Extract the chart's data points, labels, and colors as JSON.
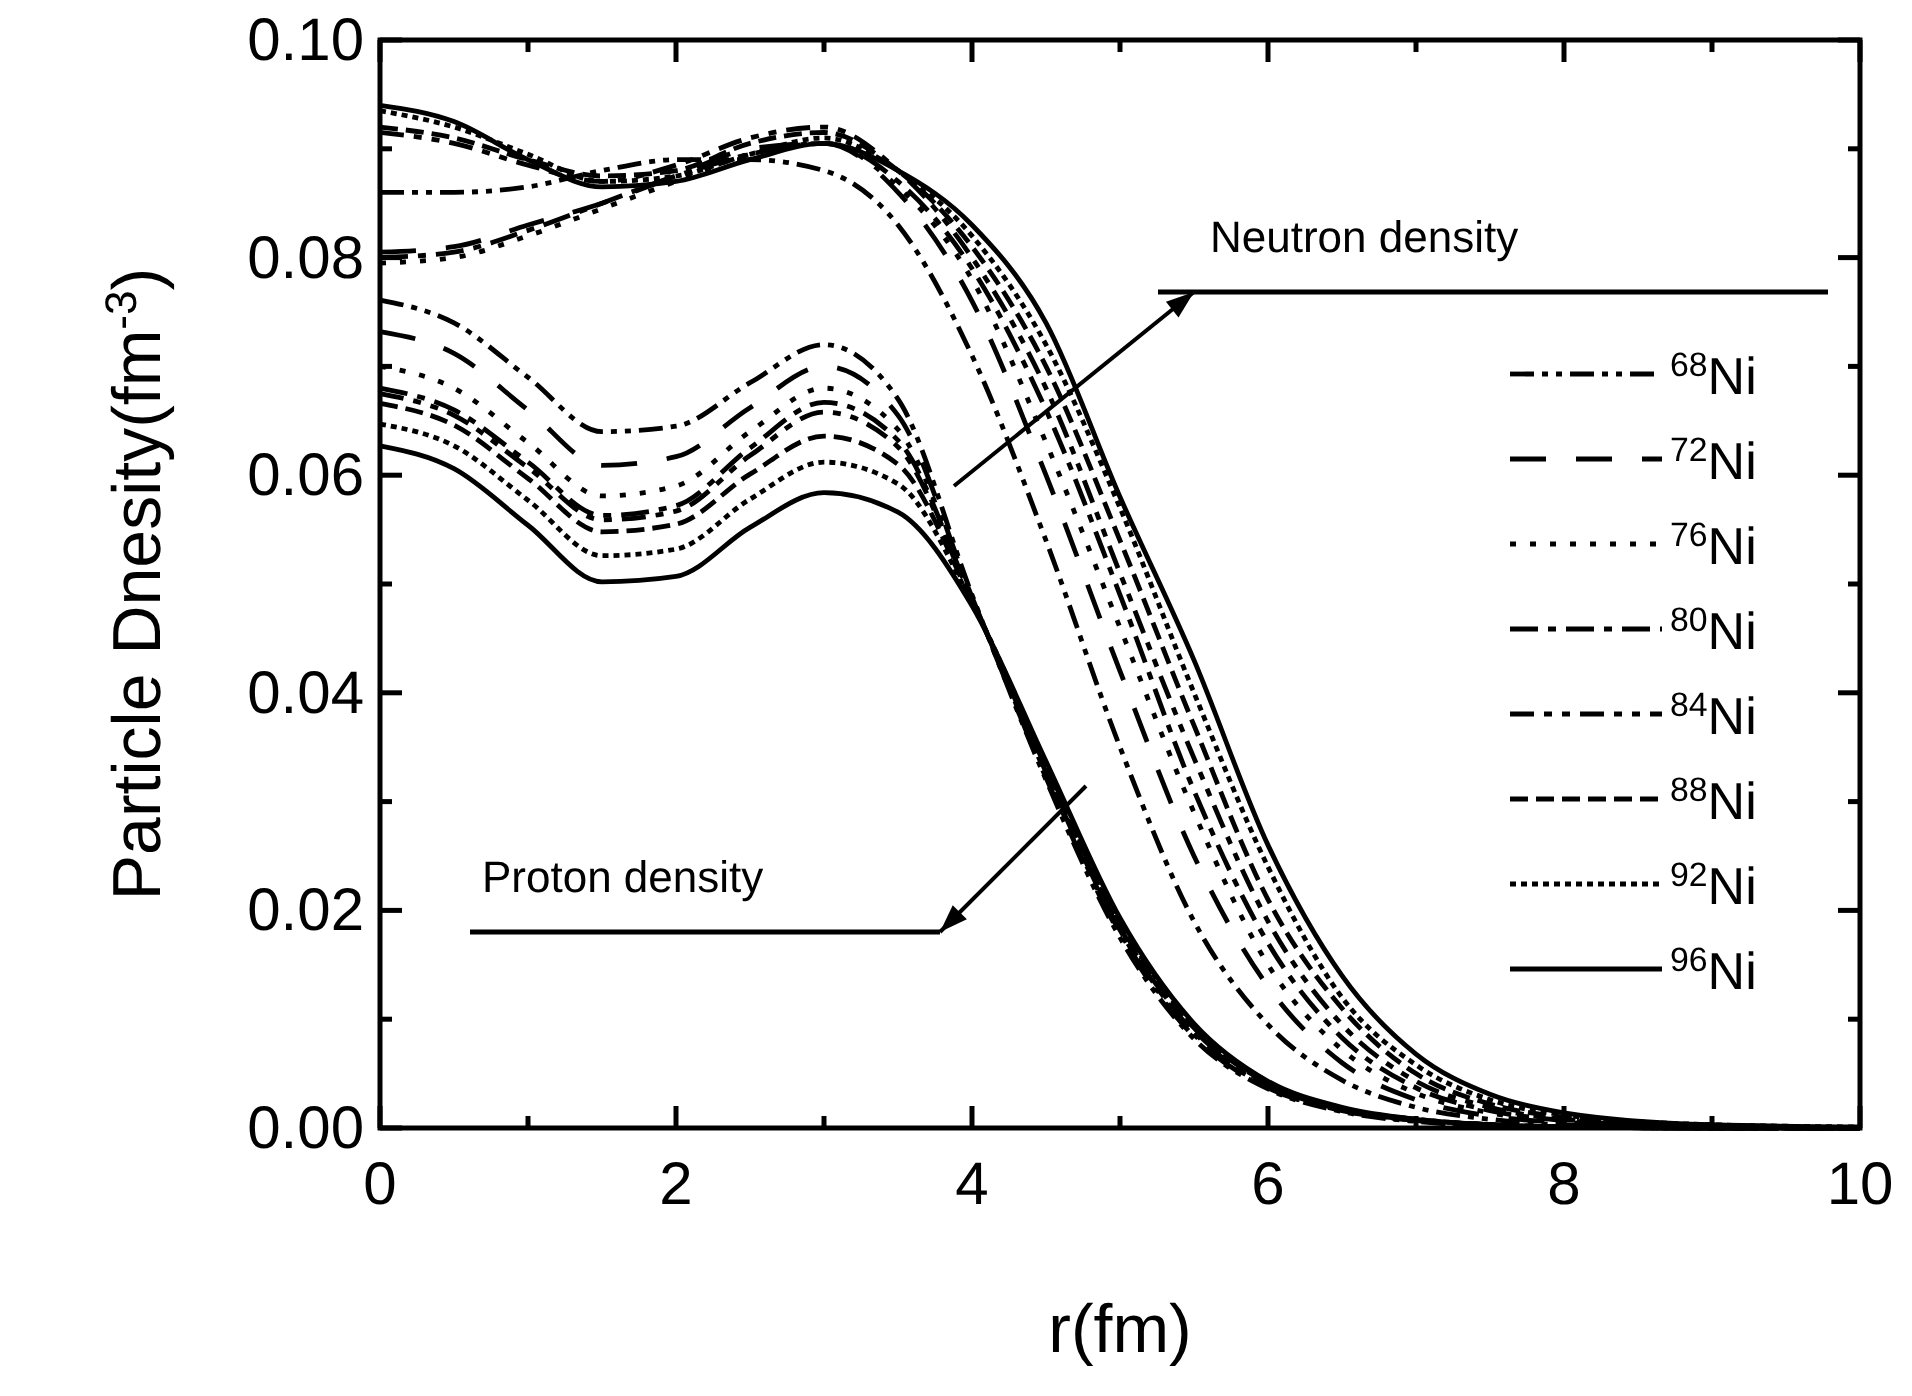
{
  "chart_data": {
    "type": "line",
    "xlabel": "r(fm)",
    "ylabel": "Particle Dnesity(fm$^{-3}$)",
    "x": [
      0,
      0.5,
      1,
      1.5,
      2,
      2.5,
      3,
      3.5,
      4,
      4.5,
      5,
      5.5,
      6,
      6.5,
      7,
      7.5,
      8,
      9,
      10
    ],
    "xlim": [
      0,
      10
    ],
    "ylim": [
      0,
      0.1
    ],
    "xticks": [
      0,
      {
        "value": 1,
        "label": null
      },
      2,
      {
        "value": 3,
        "label": null
      },
      4,
      {
        "value": 5,
        "label": null
      },
      6,
      {
        "value": 7,
        "label": null
      },
      8,
      {
        "value": 9,
        "label": null
      },
      10
    ],
    "yticks": [
      {
        "value": 0,
        "label": "0.00"
      },
      {
        "value": 0.01,
        "label": null
      },
      {
        "value": 0.02,
        "label": "0.02"
      },
      {
        "value": 0.03,
        "label": null
      },
      {
        "value": 0.04,
        "label": "0.04"
      },
      {
        "value": 0.05,
        "label": null
      },
      {
        "value": 0.06,
        "label": "0.06"
      },
      {
        "value": 0.07,
        "label": null
      },
      {
        "value": 0.08,
        "label": "0.08"
      },
      {
        "value": 0.09,
        "label": null
      },
      {
        "value": 0.1,
        "label": "0.10"
      }
    ],
    "grid": false,
    "legend": "right",
    "marker": "none",
    "annotations": [
      "Neutron density",
      "Proton density"
    ],
    "series": [
      {
        "name": "$^{68}$Ni",
        "color": "#000000",
        "line_style": "dashdotdot",
        "values": [
          0.086,
          0.086,
          0.0865,
          0.088,
          0.089,
          0.089,
          0.088,
          0.083,
          0.071,
          0.054,
          0.035,
          0.019,
          0.0095,
          0.0044,
          0.0019,
          0.0008,
          0.0003,
          0.0001,
          0
        ]
      },
      {
        "name": "$^{72}$Ni",
        "color": "#000000",
        "line_style": "longdash",
        "values": [
          0.0805,
          0.081,
          0.083,
          0.085,
          0.0875,
          0.09,
          0.0905,
          0.086,
          0.076,
          0.06,
          0.042,
          0.025,
          0.013,
          0.006,
          0.0026,
          0.0011,
          0.0005,
          0.0001,
          0
        ]
      },
      {
        "name": "$^{76}$Ni",
        "color": "#000000",
        "line_style": "dotted",
        "values": [
          0.0795,
          0.08,
          0.082,
          0.0845,
          0.087,
          0.0895,
          0.0905,
          0.0865,
          0.078,
          0.063,
          0.046,
          0.029,
          0.015,
          0.0072,
          0.0032,
          0.0014,
          0.0006,
          0.0001,
          0
        ]
      },
      {
        "name": "$^{80}$Ni",
        "color": "#000000",
        "line_style": "dashdot",
        "values": [
          0.08,
          0.0805,
          0.0825,
          0.085,
          0.0875,
          0.0895,
          0.0905,
          0.087,
          0.079,
          0.066,
          0.049,
          0.031,
          0.017,
          0.0083,
          0.0037,
          0.0016,
          0.0007,
          0.0001,
          0
        ]
      },
      {
        "name": "$^{84}$Ni",
        "color": "#000000",
        "line_style": "dashdotdotwide",
        "values": [
          0.0915,
          0.0905,
          0.0885,
          0.087,
          0.0885,
          0.091,
          0.092,
          0.088,
          0.08,
          0.068,
          0.051,
          0.034,
          0.019,
          0.0095,
          0.0043,
          0.0019,
          0.0008,
          0.0002,
          0
        ]
      },
      {
        "name": "$^{88}$Ni",
        "color": "#000000",
        "line_style": "dashed",
        "values": [
          0.092,
          0.091,
          0.089,
          0.0875,
          0.088,
          0.0905,
          0.0915,
          0.088,
          0.081,
          0.07,
          0.054,
          0.037,
          0.021,
          0.011,
          0.005,
          0.0022,
          0.001,
          0.0002,
          0
        ]
      },
      {
        "name": "$^{92}$Ni",
        "color": "#000000",
        "line_style": "densedot",
        "values": [
          0.0935,
          0.092,
          0.0895,
          0.087,
          0.0875,
          0.0895,
          0.091,
          0.088,
          0.082,
          0.072,
          0.057,
          0.04,
          0.024,
          0.012,
          0.0058,
          0.0026,
          0.0012,
          0.0003,
          0.0001
        ]
      },
      {
        "name": "$^{96}$Ni",
        "color": "#000000",
        "line_style": "solid",
        "values": [
          0.094,
          0.0925,
          0.089,
          0.0865,
          0.087,
          0.089,
          0.0905,
          0.088,
          0.083,
          0.074,
          0.058,
          0.043,
          0.026,
          0.014,
          0.0068,
          0.0031,
          0.0014,
          0.0003,
          0.0001
        ]
      },
      {
        "color": "#000000",
        "line_style": "dashdotdot",
        "values": [
          0.0761,
          0.074,
          0.069,
          0.064,
          0.0645,
          0.0685,
          0.072,
          0.067,
          0.049,
          0.032,
          0.0175,
          0.0082,
          0.0036,
          0.0015,
          0.0006,
          0.0002,
          0.0001,
          0,
          0
        ]
      },
      {
        "color": "#000000",
        "line_style": "longdash",
        "values": [
          0.0732,
          0.0712,
          0.066,
          0.0609,
          0.0617,
          0.0662,
          0.07,
          0.0655,
          0.0488,
          0.0322,
          0.0178,
          0.0084,
          0.0037,
          0.0016,
          0.0007,
          0.0003,
          0.0001,
          0,
          0
        ]
      },
      {
        "color": "#000000",
        "line_style": "dotted",
        "values": [
          0.07,
          0.068,
          0.063,
          0.0581,
          0.059,
          0.064,
          0.068,
          0.0642,
          0.0487,
          0.0325,
          0.018,
          0.0086,
          0.0038,
          0.0016,
          0.0007,
          0.0003,
          0.0001,
          0,
          0
        ]
      },
      {
        "color": "#000000",
        "line_style": "dashdot",
        "values": [
          0.068,
          0.066,
          0.0612,
          0.0563,
          0.0572,
          0.0625,
          0.0667,
          0.0632,
          0.0486,
          0.0327,
          0.0182,
          0.0088,
          0.0039,
          0.0017,
          0.0007,
          0.0003,
          0.0001,
          0,
          0
        ]
      },
      {
        "color": "#000000",
        "line_style": "dashdotdotwide",
        "values": [
          0.0675,
          0.0655,
          0.0607,
          0.0559,
          0.0567,
          0.0618,
          0.0658,
          0.0626,
          0.0485,
          0.0329,
          0.0184,
          0.009,
          0.004,
          0.0017,
          0.0007,
          0.0003,
          0.0001,
          0,
          0
        ]
      },
      {
        "color": "#000000",
        "line_style": "dashed",
        "values": [
          0.0666,
          0.0646,
          0.0597,
          0.0548,
          0.0555,
          0.0601,
          0.0636,
          0.061,
          0.0484,
          0.0331,
          0.0187,
          0.0092,
          0.0041,
          0.0018,
          0.0008,
          0.0003,
          0.0001,
          0,
          0
        ]
      },
      {
        "color": "#000000",
        "line_style": "densedot",
        "values": [
          0.0647,
          0.0627,
          0.0577,
          0.0526,
          0.0532,
          0.0578,
          0.0612,
          0.0592,
          0.0483,
          0.0334,
          0.019,
          0.0094,
          0.0042,
          0.0018,
          0.0008,
          0.0003,
          0.0001,
          0,
          0
        ]
      },
      {
        "color": "#000000",
        "line_style": "solid",
        "values": [
          0.0627,
          0.0606,
          0.0554,
          0.0502,
          0.0507,
          0.0552,
          0.0584,
          0.0566,
          0.048,
          0.0337,
          0.0193,
          0.0096,
          0.0043,
          0.0019,
          0.0008,
          0.0003,
          0.0001,
          0,
          0
        ]
      }
    ]
  }
}
